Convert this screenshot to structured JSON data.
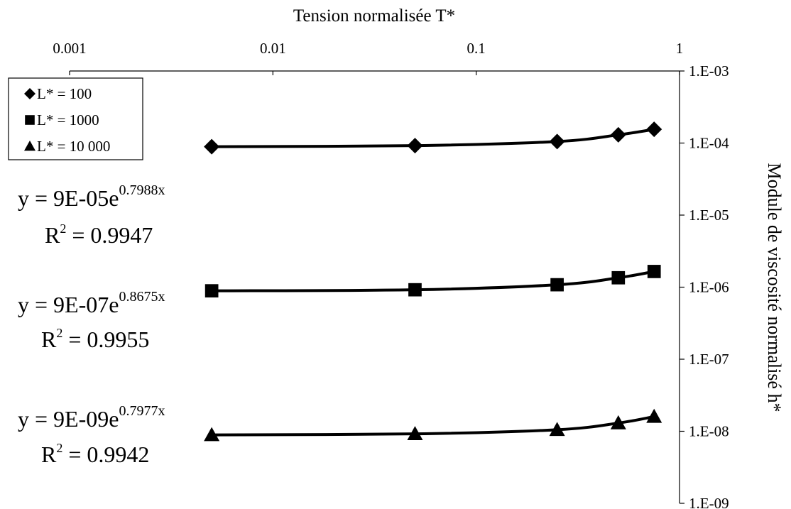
{
  "chart_data": {
    "type": "scatter",
    "xlabel": "Tension normalisée T*",
    "ylabel": "Module de viscosité normalisé h*",
    "x_scale": "log",
    "y_scale": "log",
    "xlim": [
      0.001,
      1
    ],
    "ylim": [
      1e-09,
      0.001
    ],
    "x_ticks": [
      "0.001",
      "0.01",
      "0.1",
      "1"
    ],
    "y_ticks": [
      "1.E-03",
      "1.E-04",
      "1.E-05",
      "1.E-06",
      "1.E-07",
      "1.E-08",
      "1.E-09"
    ],
    "legend_position": "top-left",
    "grid": false,
    "series": [
      {
        "name": "L* = 100",
        "marker": "diamond",
        "x": [
          0.005,
          0.05,
          0.25,
          0.5,
          0.75
        ],
        "y": [
          8.9e-05,
          9.2e-05,
          0.000105,
          0.00013,
          0.000155
        ]
      },
      {
        "name": "L* = 1000",
        "marker": "square",
        "x": [
          0.005,
          0.05,
          0.25,
          0.5,
          0.75
        ],
        "y": [
          8.9e-07,
          9.2e-07,
          1.08e-06,
          1.35e-06,
          1.65e-06
        ]
      },
      {
        "name": "L* = 10 000",
        "marker": "triangle",
        "x": [
          0.005,
          0.05,
          0.25,
          0.5,
          0.75
        ],
        "y": [
          8.9e-09,
          9.2e-09,
          1.05e-08,
          1.3e-08,
          1.6e-08
        ]
      }
    ],
    "annotations": [
      {
        "equation_base": "y = 9E-05e",
        "equation_exponent": "0.7988x",
        "r2_label": "R",
        "r2_sup": "2",
        "r2_value": " = 0.9947"
      },
      {
        "equation_base": "y = 9E-07e",
        "equation_exponent": "0.8675x",
        "r2_label": "R",
        "r2_sup": "2",
        "r2_value": " = 0.9955"
      },
      {
        "equation_base": "y = 9E-09e",
        "equation_exponent": "0.7977x",
        "r2_label": "R",
        "r2_sup": "2",
        "r2_value": " = 0.9942"
      }
    ]
  }
}
